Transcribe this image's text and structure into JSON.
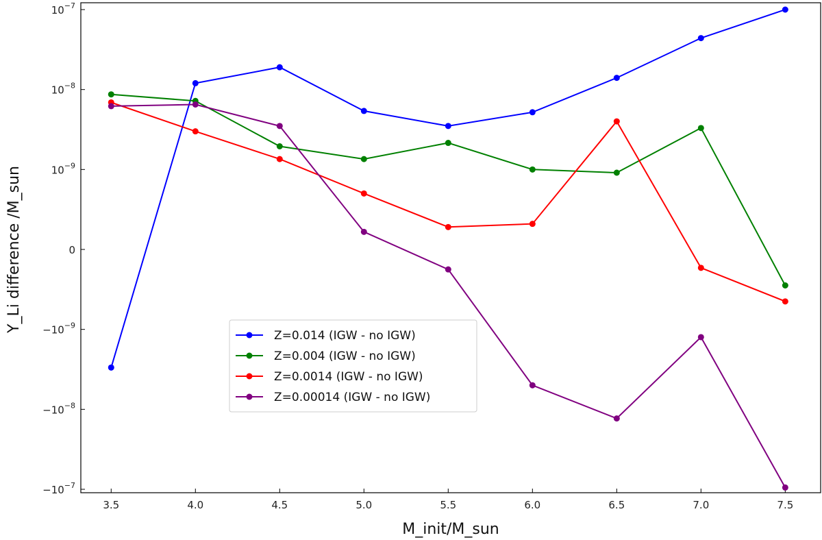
{
  "chart_data": {
    "type": "line",
    "xlabel": "M_init/M_sun",
    "ylabel": "Y_Li difference /M_sun",
    "xlim": [
      3.32,
      7.71
    ],
    "y_scale": "symlog",
    "y_linthresh": 1e-09,
    "ylim": [
      -1e-07,
      1e-07
    ],
    "x_ticks": [
      {
        "value": 3.5,
        "label": "3.5"
      },
      {
        "value": 4.0,
        "label": "4.0"
      },
      {
        "value": 4.5,
        "label": "4.5"
      },
      {
        "value": 5.0,
        "label": "5.0"
      },
      {
        "value": 5.5,
        "label": "5.5"
      },
      {
        "value": 6.0,
        "label": "6.0"
      },
      {
        "value": 6.5,
        "label": "6.5"
      },
      {
        "value": 7.0,
        "label": "7.0"
      },
      {
        "value": 7.5,
        "label": "7.5"
      }
    ],
    "y_ticks": [
      {
        "value": 1e-07,
        "base": "10",
        "exp": "−7"
      },
      {
        "value": 1e-08,
        "base": "10",
        "exp": "−8"
      },
      {
        "value": 1e-09,
        "base": "10",
        "exp": "−9"
      },
      {
        "value": 0,
        "base": "0",
        "exp": ""
      },
      {
        "value": -1e-09,
        "base": "−10",
        "exp": "−9"
      },
      {
        "value": -1e-08,
        "base": "−10",
        "exp": "−8"
      },
      {
        "value": -1e-07,
        "base": "−10",
        "exp": "−7"
      }
    ],
    "x": [
      3.5,
      4.0,
      4.5,
      5.0,
      5.5,
      6.0,
      6.5,
      7.0,
      7.5
    ],
    "series": [
      {
        "name": "Z=0.014 (IGW - no IGW)",
        "color": "#0000ff",
        "values": [
          -3e-09,
          1.2e-08,
          1.9e-08,
          5.4e-09,
          3.5e-09,
          5.2e-09,
          1.4e-08,
          4.4e-08,
          1e-07
        ]
      },
      {
        "name": "Z=0.004 (IGW - no IGW)",
        "color": "#008000",
        "values": [
          8.7e-09,
          7.2e-09,
          1.95e-09,
          1.35e-09,
          2.15e-09,
          1e-09,
          9.6e-10,
          3.3e-09,
          -4.5e-10
        ]
      },
      {
        "name": "Z=0.0014 (IGW - no IGW)",
        "color": "#ff0000",
        "values": [
          6.9e-09,
          3e-09,
          1.35e-09,
          7e-10,
          2.8e-10,
          3.2e-10,
          4e-09,
          -2.3e-10,
          -6.5e-10
        ]
      },
      {
        "name": "Z=0.00014 (IGW - no IGW)",
        "color": "#800080",
        "values": [
          6.2e-09,
          6.5e-09,
          3.5e-09,
          2.2e-10,
          -2.5e-10,
          -5e-09,
          -1.3e-08,
          -1.25e-09,
          -9.5e-08
        ]
      }
    ],
    "legend_position": "lower-center"
  }
}
